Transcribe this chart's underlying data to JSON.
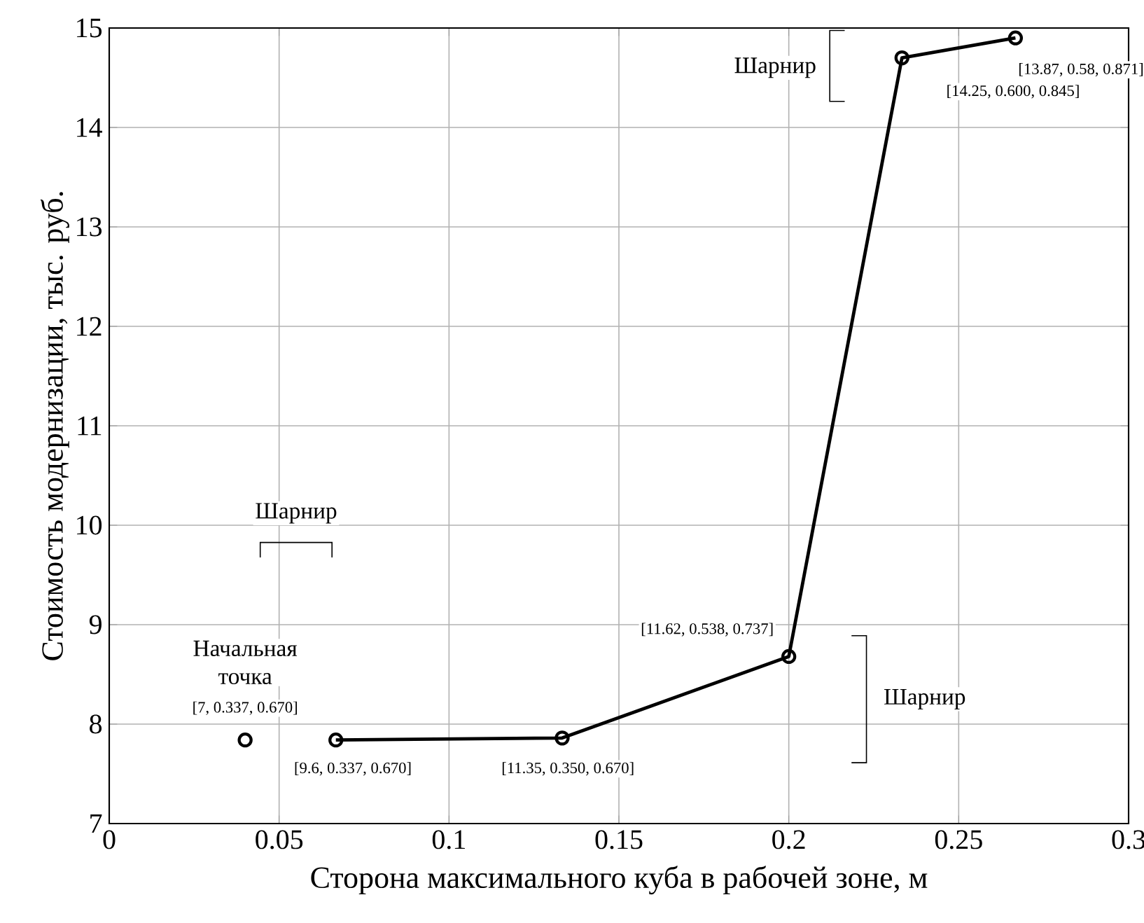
{
  "chart_data": {
    "type": "line",
    "xlabel": "Сторона максимального куба в рабочей зоне, м",
    "ylabel": "Стоимость модернизации, тыс. руб.",
    "xlim": [
      0,
      0.3
    ],
    "ylim": [
      7,
      15
    ],
    "xticks": [
      0,
      0.05,
      0.1,
      0.15,
      0.2,
      0.25,
      0.3
    ],
    "yticks": [
      7,
      8,
      9,
      10,
      11,
      12,
      13,
      14,
      15
    ],
    "grid": true,
    "marker": "circle",
    "line_style": "solid",
    "series": [
      {
        "type": "scatter",
        "color": "#000000",
        "x": [
          0.04
        ],
        "values": [
          7.84
        ]
      },
      {
        "color": "#000000",
        "x": [
          0.0667,
          0.1333,
          0.2,
          0.2333,
          0.2667
        ],
        "values": [
          7.84,
          7.86,
          8.68,
          14.7,
          14.9
        ]
      }
    ],
    "annotations": [
      "Начальная точка",
      "[7, 0.337, 0.670]",
      "[9.6, 0.337, 0.670]",
      "[11.35, 0.350, 0.670]",
      "[11.62, 0.538, 0.737]",
      "[13.87, 0.58, 0.871]",
      "[14.25, 0.600, 0.845]",
      "Шарнир",
      "Шарнир",
      "Шарнир"
    ]
  }
}
